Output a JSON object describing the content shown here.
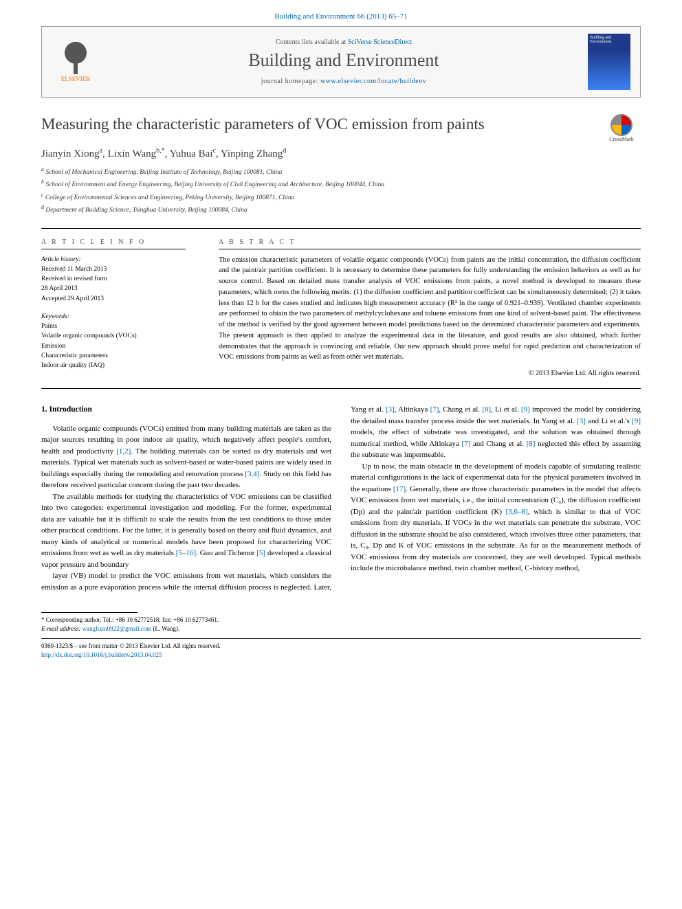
{
  "header": {
    "citation": "Building and Environment 66 (2013) 65–71"
  },
  "banner": {
    "contents_prefix": "Contents lists available at ",
    "contents_link": "SciVerse ScienceDirect",
    "journal_name": "Building and Environment",
    "homepage_prefix": "journal homepage: ",
    "homepage_url": "www.elsevier.com/locate/buildenv",
    "publisher_label": "ELSEVIER",
    "cover_label": "Building and Environment"
  },
  "article": {
    "title": "Measuring the characteristic parameters of VOC emission from paints",
    "crossmark_label": "CrossMark",
    "authors_html": "Jianyin Xiong<sup>a</sup>, Lixin Wang<sup>b,*</sup>, Yuhua Bai<sup>c</sup>, Yinping Zhang<sup>d</sup>",
    "affiliations": [
      "a School of Mechanical Engineering, Beijing Institute of Technology, Beijing 100081, China",
      "b School of Environment and Energy Engineering, Beijing University of Civil Engineering and Architecture, Beijing 100044, China",
      "c College of Environmental Sciences and Engineering, Peking University, Beijing 100871, China",
      "d Department of Building Science, Tsinghua University, Beijing 100084, China"
    ]
  },
  "meta": {
    "info_heading": "A R T I C L E   I N F O",
    "history_label": "Article history:",
    "history": [
      "Received 11 March 2013",
      "Received in revised form",
      "28 April 2013",
      "Accepted 29 April 2013"
    ],
    "keywords_label": "Keywords:",
    "keywords": [
      "Paints",
      "Volatile organic compounds (VOCs)",
      "Emission",
      "Characteristic parameters",
      "Indoor air quality (IAQ)"
    ]
  },
  "abstract": {
    "heading": "A B S T R A C T",
    "text": "The emission characteristic parameters of volatile organic compounds (VOCs) from paints are the initial concentration, the diffusion coefficient and the paint/air partition coefficient. It is necessary to determine these parameters for fully understanding the emission behaviors as well as for source control. Based on detailed mass transfer analysis of VOC emissions from paints, a novel method is developed to measure these parameters, which owns the following merits: (1) the diffusion coefficient and partition coefficient can be simultaneously determined; (2) it takes less than 12 h for the cases studied and indicates high measurement accuracy (R² in the range of 0.921–0.939). Ventilated chamber experiments are performed to obtain the two parameters of methylcyclohexane and toluene emissions from one kind of solvent-based paint. The effectiveness of the method is verified by the good agreement between model predictions based on the determined characteristic parameters and experiments. The present approach is then applied to analyze the experimental data in the literature, and good results are also obtained, which further demonstrates that the approach is convincing and reliable. Our new approach should prove useful for rapid prediction and characterization of VOC emissions from paints as well as from other wet materials.",
    "copyright": "© 2013 Elsevier Ltd. All rights reserved."
  },
  "body": {
    "section_heading": "1. Introduction",
    "p1": "Volatile organic compounds (VOCs) emitted from many building materials are taken as the major sources resulting in poor indoor air quality, which negatively affect people's comfort, health and productivity [1,2]. The building materials can be sorted as dry materials and wet materials. Typical wet materials such as solvent-based or water-based paints are widely used in buildings especially during the remodeling and renovation process [3,4]. Study on this field has therefore received particular concern during the past two decades.",
    "p2": "The available methods for studying the characteristics of VOC emissions can be classified into two categories: experimental investigation and modeling. For the former, experimental data are valuable but it is difficult to scale the results from the test conditions to those under other practical conditions. For the latter, it is generally based on theory and fluid dynamics, and many kinds of analytical or numerical models have been proposed for characterizing VOC emissions from wet as well as dry materials [5–16]. Guo and Tichenor [5] developed a classical vapor pressure and boundary",
    "p3": "layer (VB) model to predict the VOC emissions from wet materials, which considers the emission as a pure evaporation process while the internal diffusion process is neglected. Later, Yang et al. [3], Altinkaya [7], Chang et al. [8], Li et al. [9] improved the model by considering the detailed mass transfer process inside the wet materials. In Yang et al. [3] and Li et al.'s [9] models, the effect of substrate was investigated, and the solution was obtained through numerical method, while Altinkaya [7] and Chang et al. [8] neglected this effect by assuming the substrate was impermeable.",
    "p4": "Up to now, the main obstacle in the development of models capable of simulating realistic material configurations is the lack of experimental data for the physical parameters involved in the equations [17]. Generally, there are three characteristic parameters in the model that affects VOC emissions from wet materials, i.e., the initial concentration (C₀), the diffusion coefficient (Dp) and the paint/air partition coefficient (K) [3,6–8], which is similar to that of VOC emissions from dry materials. If VOCs in the wet materials can penetrate the substrate, VOC diffusion in the substrate should be also considered, which involves three other parameters, that is, C₀, Dp and K of VOC emissions in the substrate. As far as the measurement methods of VOC emissions from dry materials are concerned, they are well developed. Typical methods include the microbalance method, twin chamber method, C-history method,"
  },
  "footnotes": {
    "corr": "* Corresponding author. Tel.: +86 10 62772518; fax: +86 10 62773461.",
    "email_label": "E-mail address: ",
    "email": "wanglixin0922@gmail.com",
    "email_suffix": " (L. Wang).",
    "issn_line": "0360-1323/$ – see front matter © 2013 Elsevier Ltd. All rights reserved.",
    "doi_url": "http://dx.doi.org/10.1016/j.buildenv.2013.04.025"
  },
  "colors": {
    "link": "#0066aa",
    "publisher": "#ff6600",
    "heading_gray": "#4a4a4a"
  }
}
